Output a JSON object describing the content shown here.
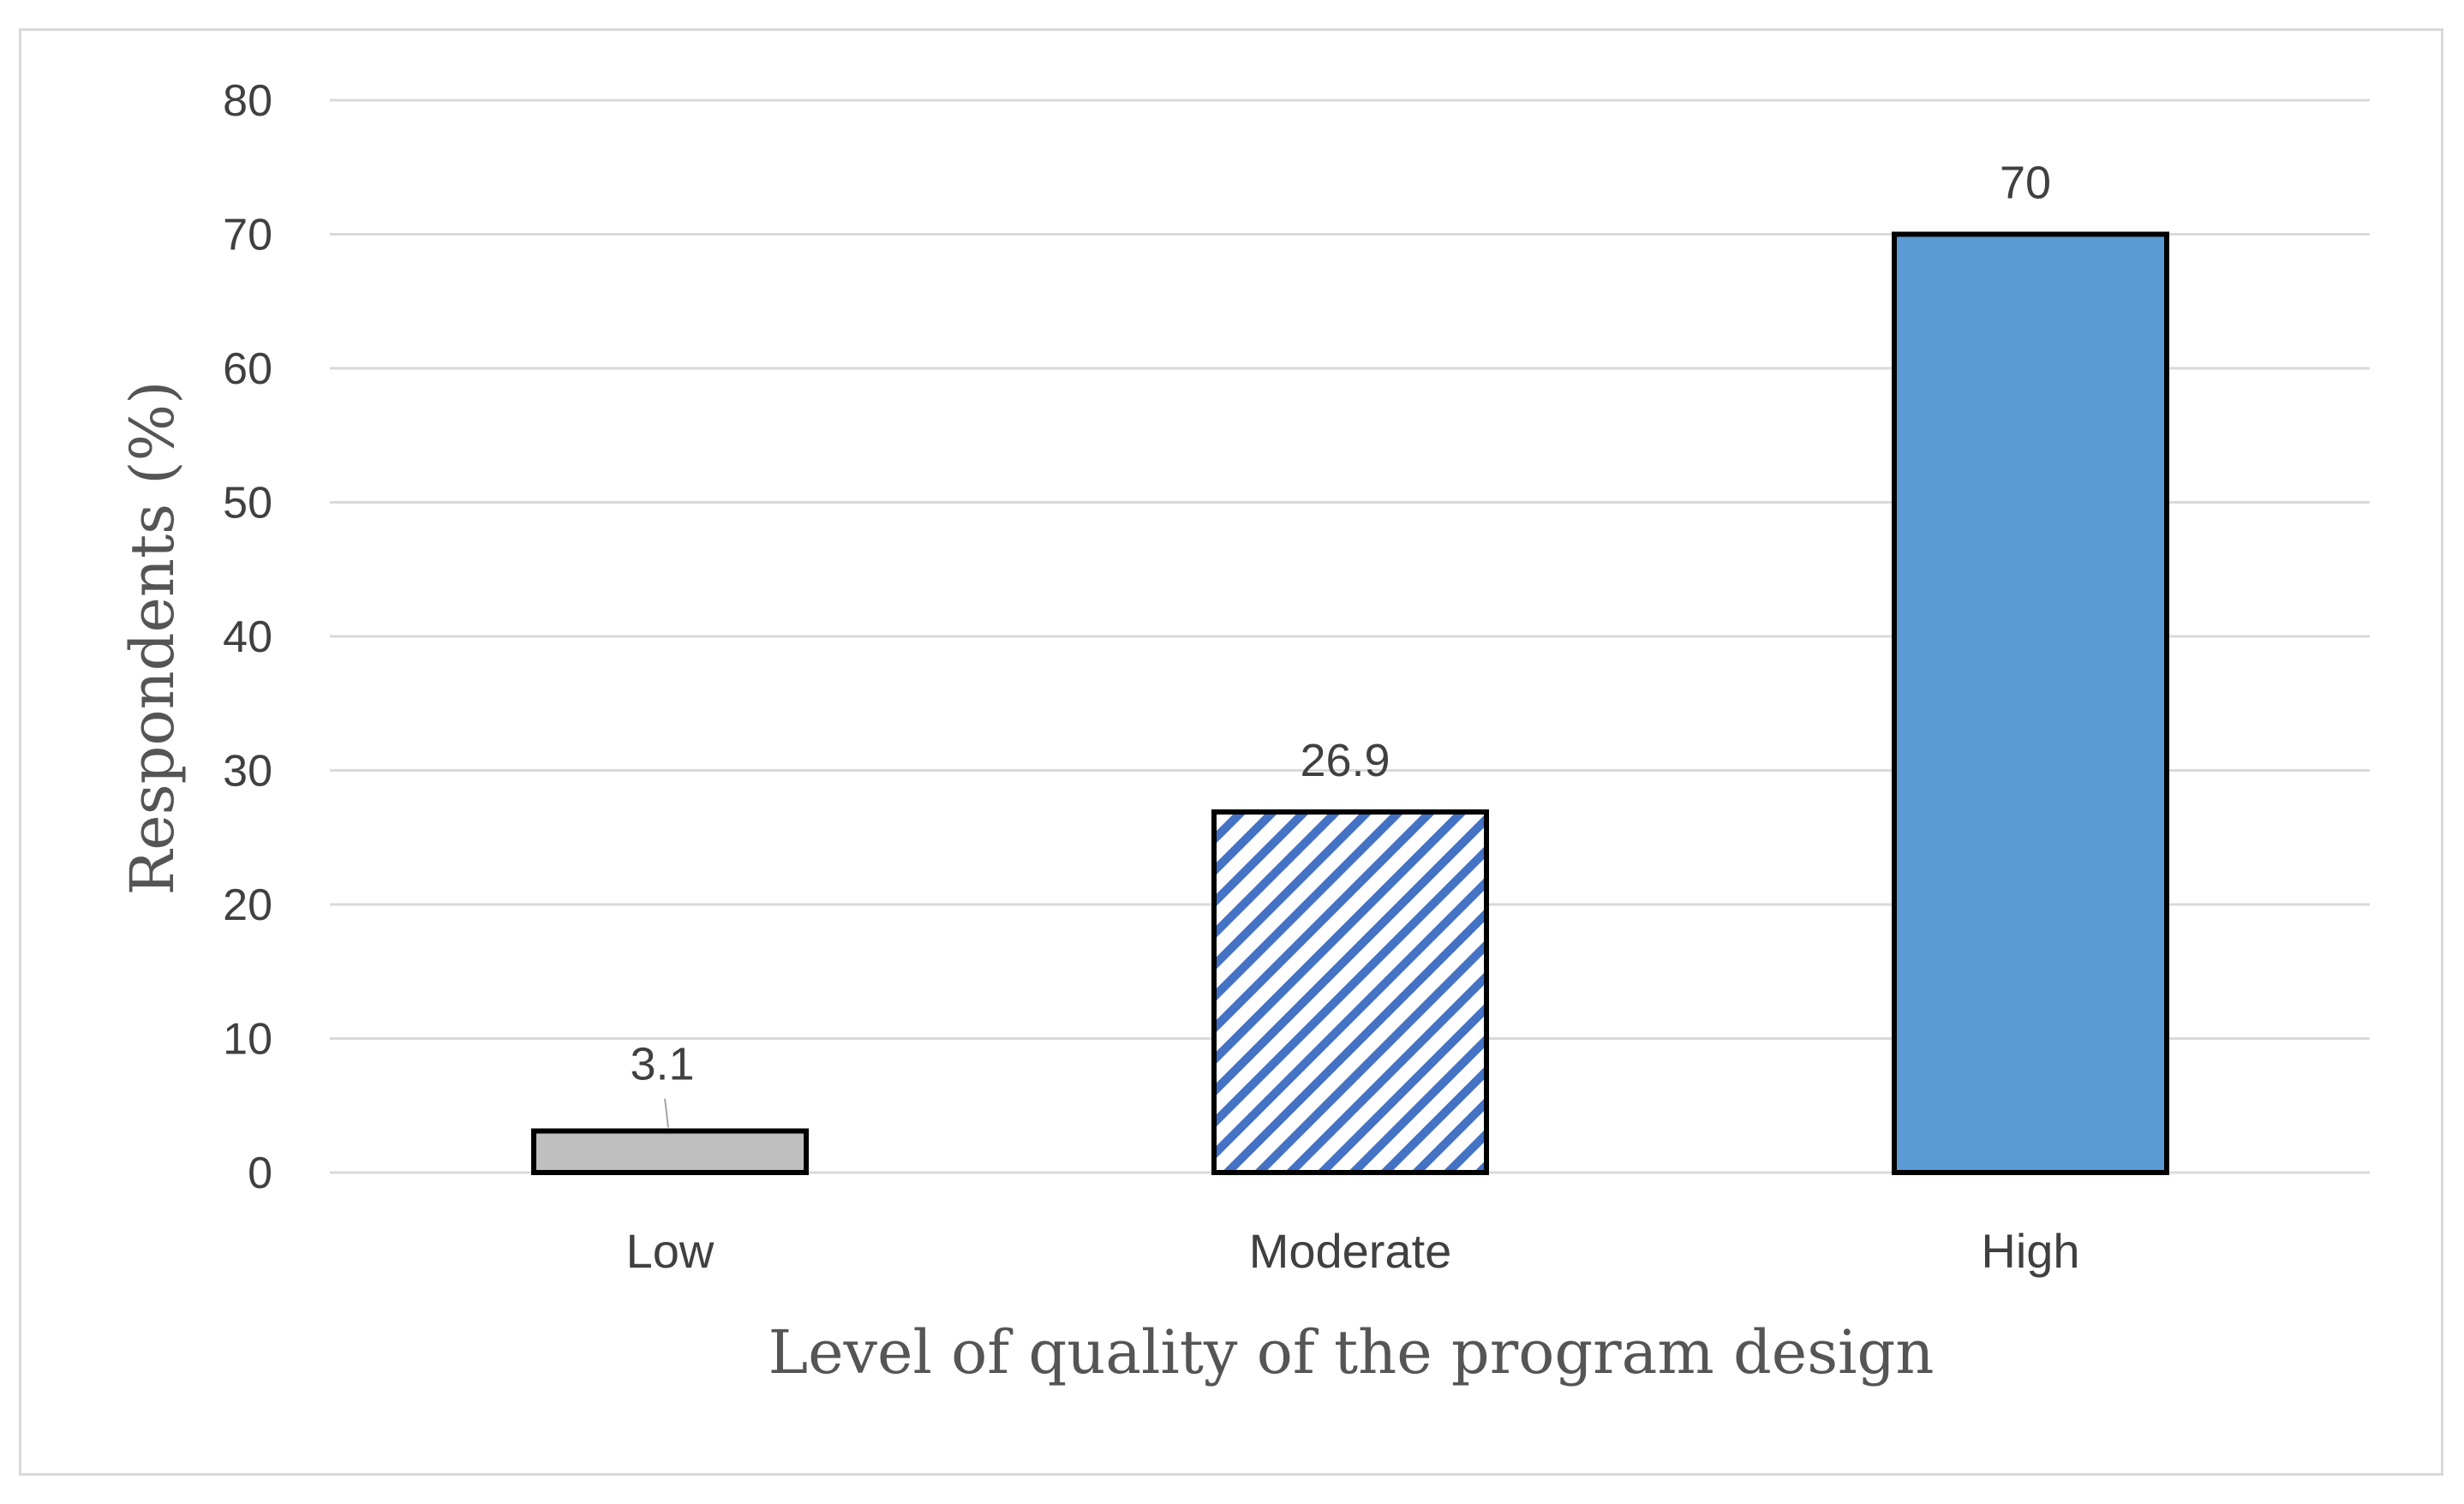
{
  "chart_data": {
    "type": "bar",
    "title": "",
    "xlabel": "Level of quality of the program design",
    "ylabel": "Respondents (%)",
    "ylim": [
      0,
      80
    ],
    "yticks": [
      0,
      10,
      20,
      30,
      40,
      50,
      60,
      70,
      80
    ],
    "grid": true,
    "categories": [
      "Low",
      "Moderate",
      "High"
    ],
    "values": [
      3.1,
      26.9,
      70
    ],
    "data_labels": [
      "3.1",
      "26.9",
      "70"
    ],
    "bar_styles": [
      {
        "fill": "#bfbfbf",
        "pattern": "solid"
      },
      {
        "fill": "#4472c4",
        "pattern": "diagonal-stripes"
      },
      {
        "fill": "#5b9bd5",
        "pattern": "solid"
      }
    ]
  },
  "colors": {
    "gridline": "#d9d9d9",
    "bar_outline": "#000000",
    "text": "#404040"
  }
}
